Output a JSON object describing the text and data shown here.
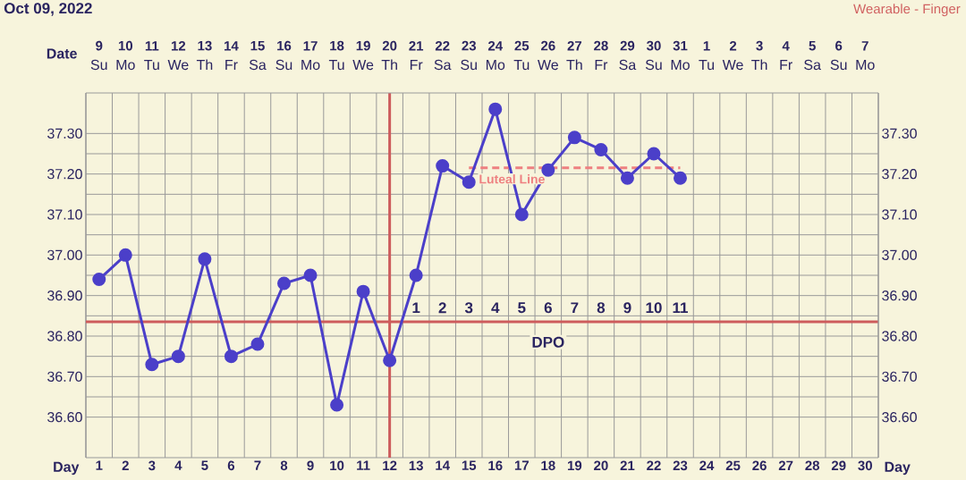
{
  "chart_data": {
    "type": "line",
    "title": "Oct 09, 2022",
    "xlabel": "Day",
    "x2label": "Date",
    "xlim": [
      0.5,
      30.5
    ],
    "xticks": [
      1,
      2,
      3,
      4,
      5,
      6,
      7,
      8,
      9,
      10,
      11,
      12,
      13,
      14,
      15,
      16,
      17,
      18,
      19,
      20,
      21,
      22,
      23,
      24,
      25,
      26,
      27,
      28,
      29,
      30
    ],
    "x2lim": [
      "2022-10-08T12:00",
      "2022-11-07T12:00"
    ],
    "x2ticks": [
      {
        "value": "2022-10-09",
        "label": "9"
      },
      {
        "value": "2022-10-10",
        "label": "10"
      },
      {
        "value": "2022-10-11",
        "label": "11"
      },
      {
        "value": "2022-10-12",
        "label": "12"
      },
      {
        "value": "2022-10-13",
        "label": "13"
      },
      {
        "value": "2022-10-14",
        "label": "14"
      },
      {
        "value": "2022-10-15",
        "label": "15"
      },
      {
        "value": "2022-10-16",
        "label": "16"
      },
      {
        "value": "2022-10-17",
        "label": "17"
      },
      {
        "value": "2022-10-18",
        "label": "18"
      },
      {
        "value": "2022-10-19",
        "label": "19"
      },
      {
        "value": "2022-10-20",
        "label": "20"
      },
      {
        "value": "2022-10-21",
        "label": "21"
      },
      {
        "value": "2022-10-22",
        "label": "22"
      },
      {
        "value": "2022-10-23",
        "label": "23"
      },
      {
        "value": "2022-10-24",
        "label": "24"
      },
      {
        "value": "2022-10-25",
        "label": "25"
      },
      {
        "value": "2022-10-26",
        "label": "26"
      },
      {
        "value": "2022-10-27",
        "label": "27"
      },
      {
        "value": "2022-10-28",
        "label": "28"
      },
      {
        "value": "2022-10-29",
        "label": "29"
      },
      {
        "value": "2022-10-30",
        "label": "30"
      },
      {
        "value": "2022-10-31",
        "label": "31"
      },
      {
        "value": "2022-11-01",
        "label": "1"
      },
      {
        "value": "2022-11-02",
        "label": "2"
      },
      {
        "value": "2022-11-03",
        "label": "3"
      },
      {
        "value": "2022-11-04",
        "label": "4"
      },
      {
        "value": "2022-11-05",
        "label": "5"
      },
      {
        "value": "2022-11-06",
        "label": "6"
      },
      {
        "value": "2022-11-07",
        "label": "7"
      }
    ],
    "ylim": [
      36.5,
      37.4
    ],
    "yticks": [
      {
        "value": 36.6,
        "label": "36.60"
      },
      {
        "value": 36.7,
        "label": "36.70"
      },
      {
        "value": 36.8,
        "label": "36.80"
      },
      {
        "value": 36.9,
        "label": "36.90"
      },
      {
        "value": 37.0,
        "label": "37.00"
      },
      {
        "value": 37.1,
        "label": "37.10"
      },
      {
        "value": 37.2,
        "label": "37.20"
      },
      {
        "value": 37.3,
        "label": "37.30"
      }
    ],
    "y2lim": [
      36.5,
      37.4
    ],
    "y2ticks": [
      {
        "value": 36.6,
        "label": "36.60"
      },
      {
        "value": 36.7,
        "label": "36.70"
      },
      {
        "value": 36.8,
        "label": "36.80"
      },
      {
        "value": 36.9,
        "label": "36.90"
      },
      {
        "value": 37.0,
        "label": "37.00"
      },
      {
        "value": 37.1,
        "label": "37.10"
      },
      {
        "value": 37.2,
        "label": "37.20"
      },
      {
        "value": 37.3,
        "label": "37.30"
      }
    ],
    "grid": true,
    "marker": "circle",
    "line_style": "solid",
    "series": [
      {
        "color": "#4b3fc9",
        "x": [
          1,
          2,
          3,
          4,
          5,
          6,
          7,
          8,
          9,
          10,
          11,
          12,
          13,
          14,
          15,
          16,
          17,
          18,
          19,
          20,
          21,
          22,
          23
        ],
        "values": [
          36.94,
          37.0,
          36.73,
          36.75,
          36.99,
          36.75,
          36.78,
          36.93,
          36.95,
          36.63,
          36.91,
          36.74,
          36.95,
          37.22,
          37.18,
          37.36,
          37.1,
          37.21,
          37.29,
          37.26,
          37.19,
          37.25,
          37.19
        ]
      },
      {
        "name": "Luteal Line",
        "color": "#ee8080",
        "marker": "none",
        "line_style": "dashed",
        "x": [
          15,
          23
        ],
        "values": [
          37.215,
          37.215
        ]
      }
    ],
    "ref_lines": [
      {
        "axis": "x",
        "value": 12,
        "color": "#cd5c5c"
      },
      {
        "axis": "y",
        "value": 36.835,
        "color": "#cd5c5c"
      }
    ],
    "annotations": [
      "Wearable - Finger",
      "Su",
      "Mo",
      "Tu",
      "We",
      "Th",
      "Fr",
      "Sa",
      "Su",
      "Mo",
      "Tu",
      "We",
      "Th",
      "Fr",
      "Sa",
      "Su",
      "Mo",
      "Tu",
      "We",
      "Th",
      "Fr",
      "Sa",
      "Su",
      "Mo",
      "Tu",
      "We",
      "Th",
      "Fr",
      "Sa",
      "Su",
      "Mo",
      {
        "text": "1",
        "x": 13,
        "y": 36.87
      },
      {
        "text": "2",
        "x": 14,
        "y": 36.87
      },
      {
        "text": "3",
        "x": 15,
        "y": 36.87
      },
      {
        "text": "4",
        "x": 16,
        "y": 36.87
      },
      {
        "text": "5",
        "x": 17,
        "y": 36.87
      },
      {
        "text": "6",
        "x": 18,
        "y": 36.87
      },
      {
        "text": "7",
        "x": 19,
        "y": 36.87
      },
      {
        "text": "8",
        "x": 20,
        "y": 36.87
      },
      {
        "text": "9",
        "x": 21,
        "y": 36.87
      },
      {
        "text": "10",
        "x": 22,
        "y": 36.87
      },
      {
        "text": "11",
        "x": 23,
        "y": 36.87
      },
      {
        "text": "DPO",
        "x": 18,
        "y": 36.785
      }
    ]
  }
}
